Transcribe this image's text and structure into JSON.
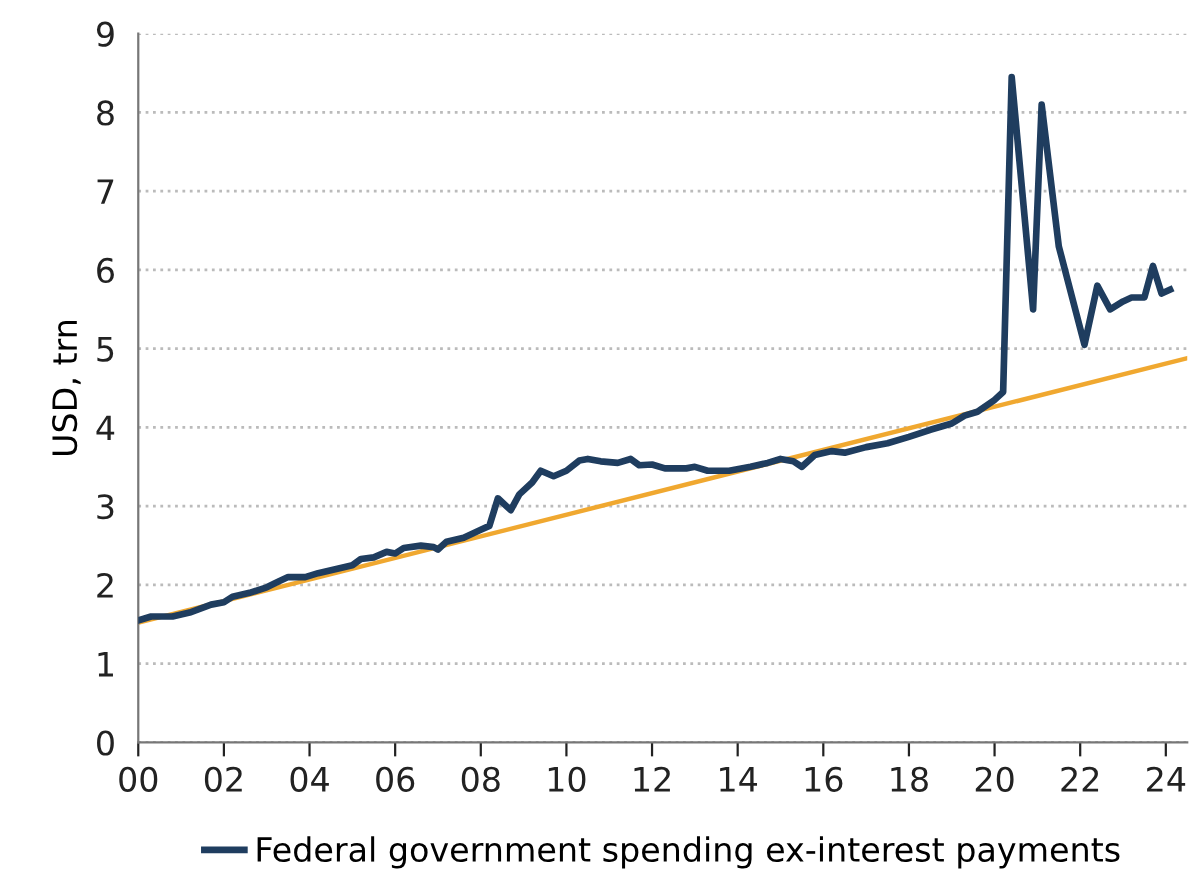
{
  "chart_data": {
    "type": "line",
    "ylabel": "USD, trn",
    "xlim": [
      0,
      24.5
    ],
    "ylim": [
      0,
      9
    ],
    "xticks": [
      {
        "value": 0,
        "label": "00"
      },
      {
        "value": 2,
        "label": "02"
      },
      {
        "value": 4,
        "label": "04"
      },
      {
        "value": 6,
        "label": "06"
      },
      {
        "value": 8,
        "label": "08"
      },
      {
        "value": 10,
        "label": "10"
      },
      {
        "value": 12,
        "label": "12"
      },
      {
        "value": 14,
        "label": "14"
      },
      {
        "value": 16,
        "label": "16"
      },
      {
        "value": 18,
        "label": "18"
      },
      {
        "value": 20,
        "label": "20"
      },
      {
        "value": 22,
        "label": "22"
      },
      {
        "value": 24,
        "label": "24"
      }
    ],
    "yticks": [
      0,
      1,
      2,
      3,
      4,
      5,
      6,
      7,
      8,
      9
    ],
    "grid": "y",
    "legend": "bottom",
    "marker": "none",
    "line_style": "solid",
    "series": [
      {
        "name": "Federal government spending ex-interest payments",
        "color": "#1f3d5f",
        "x": [
          0.0,
          0.3,
          0.8,
          1.2,
          1.7,
          2.0,
          2.2,
          2.6,
          3.0,
          3.3,
          3.5,
          3.9,
          4.2,
          4.6,
          5.0,
          5.2,
          5.5,
          5.8,
          6.0,
          6.2,
          6.6,
          6.9,
          7.0,
          7.2,
          7.6,
          8.0,
          8.2,
          8.4,
          8.7,
          8.9,
          9.2,
          9.4,
          9.7,
          10.0,
          10.3,
          10.5,
          10.8,
          11.2,
          11.5,
          11.7,
          12.0,
          12.3,
          12.8,
          13.0,
          13.3,
          13.8,
          14.3,
          14.7,
          15.0,
          15.3,
          15.5,
          15.8,
          16.2,
          16.5,
          17.0,
          17.5,
          18.0,
          18.5,
          19.0,
          19.3,
          19.6,
          20.0,
          20.2,
          20.4,
          20.9,
          21.1,
          21.5,
          22.1,
          22.4,
          22.7,
          23.0,
          23.2,
          23.5,
          23.7,
          23.9,
          24.1
        ],
        "values": [
          1.55,
          1.6,
          1.6,
          1.65,
          1.75,
          1.78,
          1.85,
          1.9,
          1.97,
          2.05,
          2.1,
          2.1,
          2.15,
          2.2,
          2.25,
          2.33,
          2.35,
          2.42,
          2.4,
          2.47,
          2.5,
          2.48,
          2.45,
          2.55,
          2.6,
          2.7,
          2.75,
          3.1,
          2.95,
          3.15,
          3.3,
          3.45,
          3.38,
          3.45,
          3.58,
          3.6,
          3.57,
          3.55,
          3.6,
          3.52,
          3.53,
          3.48,
          3.48,
          3.5,
          3.45,
          3.45,
          3.5,
          3.55,
          3.6,
          3.57,
          3.5,
          3.65,
          3.7,
          3.68,
          3.75,
          3.8,
          3.88,
          3.97,
          4.05,
          4.15,
          4.2,
          4.35,
          4.45,
          8.45,
          5.5,
          8.1,
          6.3,
          5.05,
          5.8,
          5.5,
          5.6,
          5.65,
          5.65,
          6.05,
          5.7,
          5.75
        ]
      },
      {
        "type": "line",
        "color": "#f0a830",
        "x": [
          0,
          24.5
        ],
        "values": [
          1.52,
          4.88
        ]
      }
    ]
  }
}
